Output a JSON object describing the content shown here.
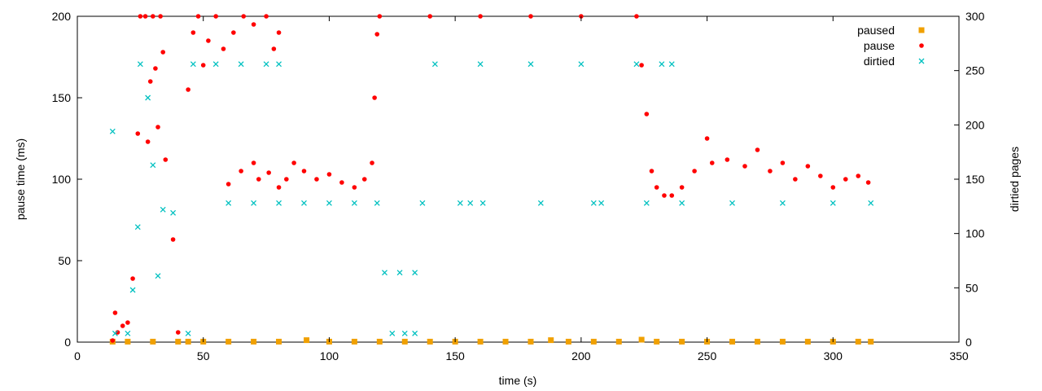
{
  "chart_data": {
    "type": "scatter",
    "xlabel": "time (s)",
    "ylabel": "pause time (ms)",
    "y2label": "dirtied pages",
    "xlim": [
      0,
      350
    ],
    "ylim": [
      0,
      200
    ],
    "y2lim": [
      0,
      300
    ],
    "xticks": [
      "0",
      "50",
      "100",
      "150",
      "200",
      "250",
      "300",
      "350"
    ],
    "yticks": [
      "0",
      "50",
      "100",
      "150",
      "200"
    ],
    "y2ticks": [
      "0",
      "50",
      "100",
      "150",
      "200",
      "250",
      "300"
    ],
    "grid": false,
    "legend_position": "top-right",
    "series": [
      {
        "name": "paused",
        "axis": "y",
        "marker": "square",
        "color": "#f0a000",
        "points": [
          [
            14,
            0.3
          ],
          [
            20,
            0.3
          ],
          [
            30,
            0.3
          ],
          [
            40,
            0.3
          ],
          [
            44,
            0.3
          ],
          [
            50,
            0.3
          ],
          [
            60,
            0.3
          ],
          [
            70,
            0.3
          ],
          [
            80,
            0.3
          ],
          [
            91,
            1.2
          ],
          [
            100,
            0.3
          ],
          [
            110,
            0.3
          ],
          [
            120,
            0.3
          ],
          [
            130,
            0.3
          ],
          [
            140,
            0.3
          ],
          [
            150,
            0.3
          ],
          [
            160,
            0.3
          ],
          [
            170,
            0.3
          ],
          [
            180,
            0.3
          ],
          [
            188,
            1.2
          ],
          [
            195,
            0.3
          ],
          [
            205,
            0.3
          ],
          [
            215,
            0.3
          ],
          [
            224,
            1.5
          ],
          [
            230,
            0.3
          ],
          [
            240,
            0.3
          ],
          [
            250,
            0.3
          ],
          [
            260,
            0.3
          ],
          [
            270,
            0.3
          ],
          [
            280,
            0.3
          ],
          [
            290,
            0.3
          ],
          [
            300,
            0.3
          ],
          [
            310,
            0.3
          ],
          [
            315,
            0.3
          ]
        ]
      },
      {
        "name": "pause",
        "axis": "y",
        "marker": "circle",
        "color": "#ff0000",
        "points": [
          [
            14,
            1
          ],
          [
            15,
            18
          ],
          [
            16,
            6
          ],
          [
            18,
            10
          ],
          [
            20,
            12
          ],
          [
            22,
            39
          ],
          [
            24,
            128
          ],
          [
            25,
            200
          ],
          [
            27,
            200
          ],
          [
            28,
            123
          ],
          [
            29,
            160
          ],
          [
            30,
            200
          ],
          [
            31,
            168
          ],
          [
            32,
            132
          ],
          [
            33,
            200
          ],
          [
            34,
            178
          ],
          [
            35,
            112
          ],
          [
            38,
            63
          ],
          [
            40,
            6
          ],
          [
            44,
            155
          ],
          [
            46,
            190
          ],
          [
            48,
            200
          ],
          [
            50,
            170
          ],
          [
            52,
            185
          ],
          [
            55,
            200
          ],
          [
            58,
            180
          ],
          [
            62,
            190
          ],
          [
            66,
            200
          ],
          [
            70,
            195
          ],
          [
            75,
            200
          ],
          [
            78,
            180
          ],
          [
            80,
            190
          ],
          [
            60,
            97
          ],
          [
            65,
            105
          ],
          [
            70,
            110
          ],
          [
            72,
            100
          ],
          [
            76,
            104
          ],
          [
            80,
            95
          ],
          [
            83,
            100
          ],
          [
            86,
            110
          ],
          [
            90,
            105
          ],
          [
            95,
            100
          ],
          [
            100,
            103
          ],
          [
            105,
            98
          ],
          [
            110,
            95
          ],
          [
            114,
            100
          ],
          [
            117,
            110
          ],
          [
            118,
            150
          ],
          [
            119,
            189
          ],
          [
            120,
            200
          ],
          [
            140,
            200
          ],
          [
            160,
            200
          ],
          [
            180,
            200
          ],
          [
            200,
            200
          ],
          [
            222,
            200
          ],
          [
            224,
            170
          ],
          [
            226,
            140
          ],
          [
            228,
            105
          ],
          [
            230,
            95
          ],
          [
            233,
            90
          ],
          [
            236,
            90
          ],
          [
            240,
            95
          ],
          [
            245,
            105
          ],
          [
            250,
            125
          ],
          [
            252,
            110
          ],
          [
            258,
            112
          ],
          [
            265,
            108
          ],
          [
            270,
            118
          ],
          [
            275,
            105
          ],
          [
            280,
            110
          ],
          [
            285,
            100
          ],
          [
            290,
            108
          ],
          [
            295,
            102
          ],
          [
            300,
            95
          ],
          [
            305,
            100
          ],
          [
            310,
            102
          ],
          [
            314,
            98
          ]
        ]
      },
      {
        "name": "dirtied",
        "axis": "y2",
        "marker": "cross",
        "color": "#00c0c0",
        "points": [
          [
            14,
            194
          ],
          [
            15,
            8
          ],
          [
            20,
            8
          ],
          [
            22,
            48
          ],
          [
            24,
            106
          ],
          [
            25,
            256
          ],
          [
            28,
            225
          ],
          [
            30,
            163
          ],
          [
            32,
            61
          ],
          [
            34,
            122
          ],
          [
            38,
            119
          ],
          [
            44,
            8
          ],
          [
            46,
            256
          ],
          [
            55,
            256
          ],
          [
            65,
            256
          ],
          [
            75,
            256
          ],
          [
            80,
            256
          ],
          [
            60,
            128
          ],
          [
            70,
            128
          ],
          [
            80,
            128
          ],
          [
            90,
            128
          ],
          [
            100,
            128
          ],
          [
            110,
            128
          ],
          [
            119,
            128
          ],
          [
            122,
            64
          ],
          [
            128,
            64
          ],
          [
            134,
            64
          ],
          [
            125,
            8
          ],
          [
            130,
            8
          ],
          [
            134,
            8
          ],
          [
            137,
            128
          ],
          [
            142,
            256
          ],
          [
            160,
            256
          ],
          [
            180,
            256
          ],
          [
            200,
            256
          ],
          [
            222,
            256
          ],
          [
            152,
            128
          ],
          [
            156,
            128
          ],
          [
            161,
            128
          ],
          [
            184,
            128
          ],
          [
            205,
            128
          ],
          [
            208,
            128
          ],
          [
            226,
            128
          ],
          [
            232,
            256
          ],
          [
            236,
            256
          ],
          [
            240,
            128
          ],
          [
            260,
            128
          ],
          [
            280,
            128
          ],
          [
            300,
            128
          ],
          [
            315,
            128
          ]
        ]
      }
    ]
  }
}
